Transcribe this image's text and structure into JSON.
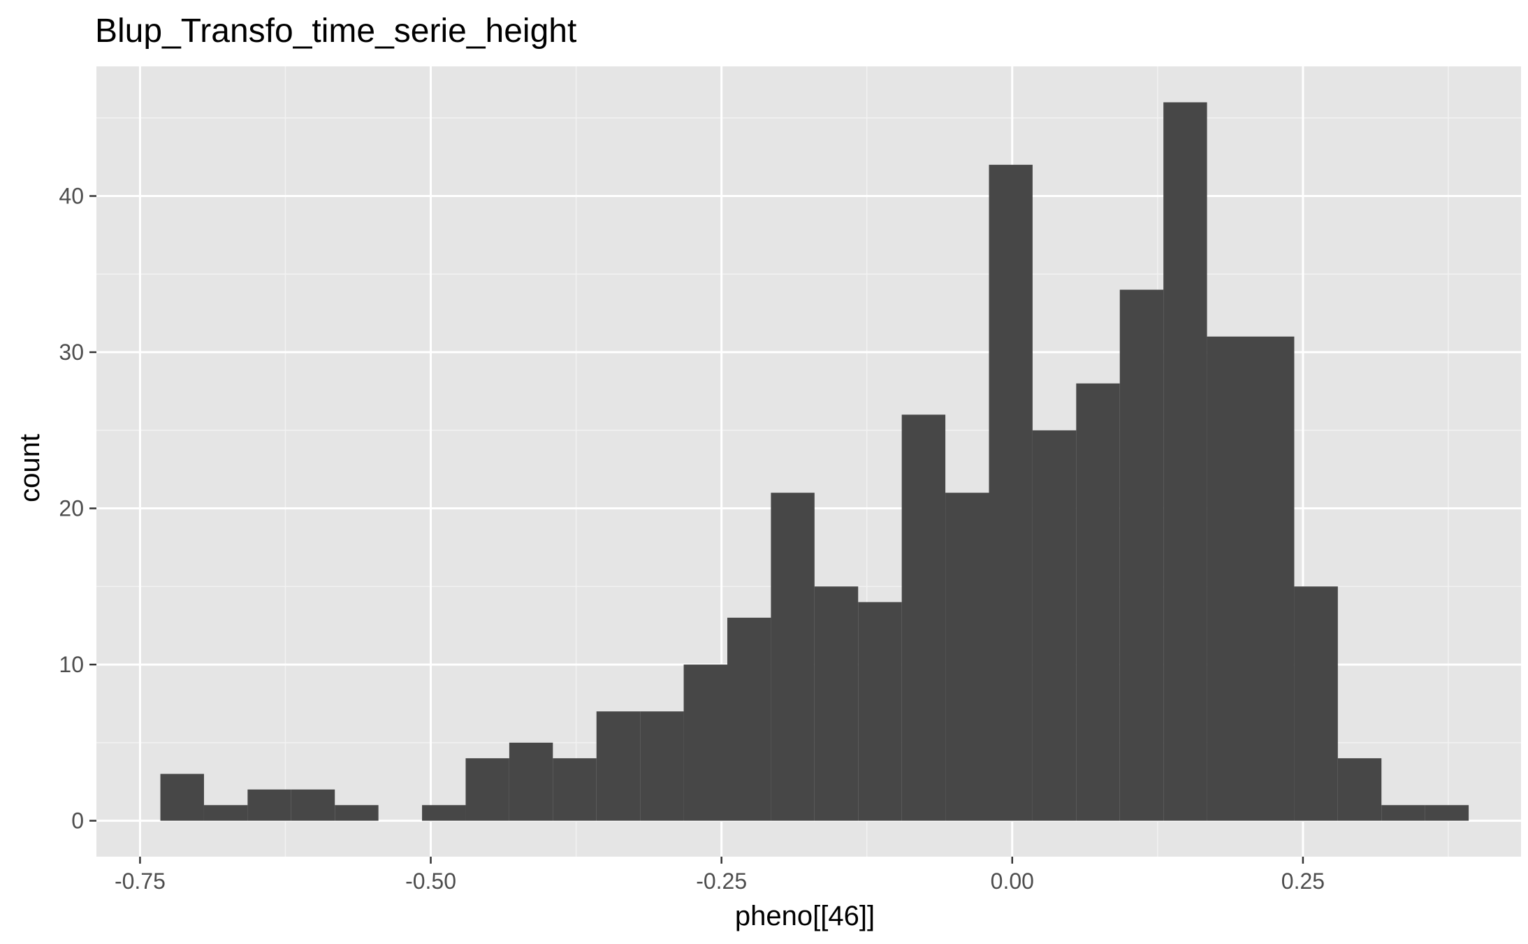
{
  "chart_data": {
    "type": "bar",
    "title": "Blup_Transfo_time_serie_height",
    "xlabel": "pheno[[46]]",
    "ylabel": "count",
    "x_ticks": [
      -0.75,
      -0.5,
      -0.25,
      0.0,
      0.25
    ],
    "x_tick_labels": [
      "-0.75",
      "-0.50",
      "-0.25",
      "0.00",
      "0.25"
    ],
    "y_ticks": [
      0,
      10,
      20,
      30,
      40
    ],
    "y_tick_labels": [
      "0",
      "10",
      "20",
      "30",
      "40"
    ],
    "xlim": [
      -0.7875,
      0.4375
    ],
    "ylim": [
      -2.3,
      48.3
    ],
    "grid": true,
    "legend": "none",
    "bin_width": 0.0375,
    "bins": [
      {
        "x0": -0.7325,
        "x1": -0.695,
        "count": 3
      },
      {
        "x0": -0.695,
        "x1": -0.6575,
        "count": 1
      },
      {
        "x0": -0.6575,
        "x1": -0.62,
        "count": 2
      },
      {
        "x0": -0.62,
        "x1": -0.5825,
        "count": 2
      },
      {
        "x0": -0.5825,
        "x1": -0.545,
        "count": 1
      },
      {
        "x0": -0.545,
        "x1": -0.5075,
        "count": 0
      },
      {
        "x0": -0.5075,
        "x1": -0.47,
        "count": 1
      },
      {
        "x0": -0.47,
        "x1": -0.4325,
        "count": 4
      },
      {
        "x0": -0.4325,
        "x1": -0.395,
        "count": 5
      },
      {
        "x0": -0.395,
        "x1": -0.3575,
        "count": 4
      },
      {
        "x0": -0.3575,
        "x1": -0.32,
        "count": 7
      },
      {
        "x0": -0.32,
        "x1": -0.2825,
        "count": 7
      },
      {
        "x0": -0.2825,
        "x1": -0.245,
        "count": 10
      },
      {
        "x0": -0.245,
        "x1": -0.2075,
        "count": 13
      },
      {
        "x0": -0.2075,
        "x1": -0.17,
        "count": 21
      },
      {
        "x0": -0.17,
        "x1": -0.1325,
        "count": 15
      },
      {
        "x0": -0.1325,
        "x1": -0.095,
        "count": 14
      },
      {
        "x0": -0.095,
        "x1": -0.0575,
        "count": 26
      },
      {
        "x0": -0.0575,
        "x1": -0.02,
        "count": 21
      },
      {
        "x0": -0.02,
        "x1": 0.0175,
        "count": 42
      },
      {
        "x0": 0.0175,
        "x1": 0.055,
        "count": 25
      },
      {
        "x0": 0.055,
        "x1": 0.0925,
        "count": 28
      },
      {
        "x0": 0.0925,
        "x1": 0.13,
        "count": 34
      },
      {
        "x0": 0.13,
        "x1": 0.1675,
        "count": 46
      },
      {
        "x0": 0.1675,
        "x1": 0.205,
        "count": 31
      },
      {
        "x0": 0.205,
        "x1": 0.2425,
        "count": 31
      },
      {
        "x0": 0.2425,
        "x1": 0.28,
        "count": 15
      },
      {
        "x0": 0.28,
        "x1": 0.3175,
        "count": 4
      },
      {
        "x0": 0.3175,
        "x1": 0.355,
        "count": 1
      },
      {
        "x0": 0.355,
        "x1": 0.3925,
        "count": 1
      }
    ],
    "colors": {
      "panel_background": "#e5e5e5",
      "grid_major": "#ffffff",
      "grid_minor": "#f2f2f2",
      "bar_fill": "#474747",
      "tick_label": "#4d4d4d",
      "tick_mark": "#333333"
    }
  }
}
